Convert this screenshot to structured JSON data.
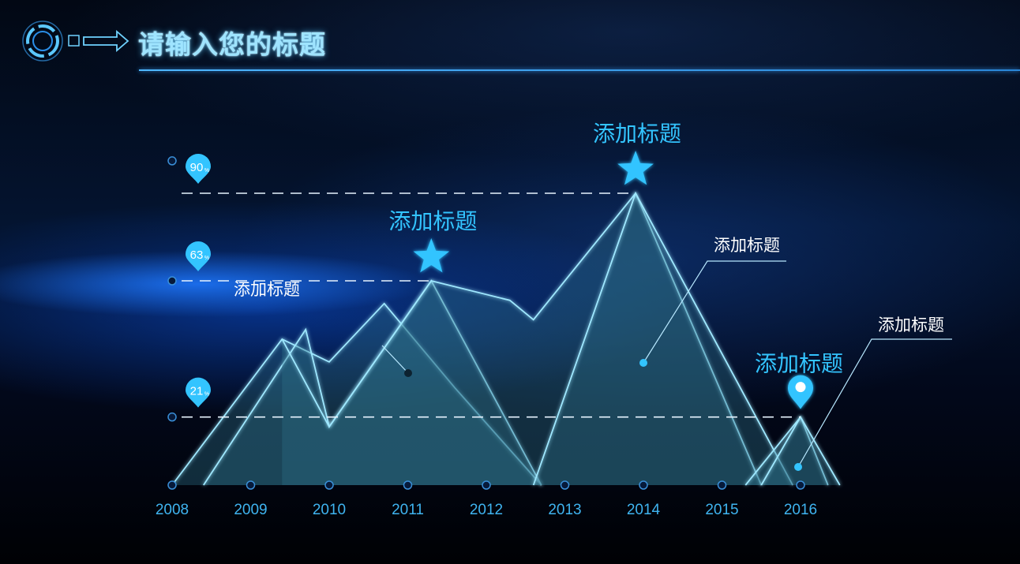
{
  "header": {
    "title": "请输入您的标题"
  },
  "colors": {
    "accent": "#33c4ff",
    "line": "#9fe8ff",
    "fill": "#2e6f86",
    "axis": "#3a8fd8",
    "label": "#3fb4f0",
    "annotation": "#ffffff"
  },
  "chart_data": {
    "type": "area",
    "x_ticks": [
      "2008",
      "2009",
      "2010",
      "2011",
      "2012",
      "2013",
      "2014",
      "2015",
      "2016"
    ],
    "ylim": [
      0,
      100
    ],
    "reference_lines": [
      {
        "label": "90",
        "unit": "%",
        "value": 90
      },
      {
        "label": "63",
        "unit": "%",
        "value": 63
      },
      {
        "label": "21",
        "unit": "%",
        "value": 21
      }
    ],
    "series": [
      {
        "x": [
          2008.0,
          2009.4,
          2010.0,
          2010.7,
          2011.6,
          2012.7
        ],
        "y": [
          0,
          45,
          38,
          56,
          30,
          0
        ]
      },
      {
        "x": [
          2008.4,
          2009.7,
          2010.0,
          2011.3,
          2012.7
        ],
        "y": [
          0,
          48,
          18,
          63,
          0
        ]
      },
      {
        "x": [
          2009.4,
          2010.0,
          2011.3,
          2012.3,
          2012.6,
          2013.9,
          2015.5
        ],
        "y": [
          45,
          18,
          63,
          57,
          51,
          90,
          0
        ]
      },
      {
        "x": [
          2012.6,
          2013.9,
          2015.9
        ],
        "y": [
          0,
          90,
          0
        ]
      },
      {
        "x": [
          2015.3,
          2016.0,
          2016.35
        ],
        "y": [
          0,
          21,
          0
        ]
      },
      {
        "x": [
          2015.5,
          2016.0,
          2016.5
        ],
        "y": [
          0,
          21,
          0
        ]
      }
    ],
    "annotations": [
      {
        "text": "添加标题",
        "marker": "star",
        "x": 2011.3,
        "y": 63
      },
      {
        "text": "添加标题",
        "marker": "star",
        "x": 2013.9,
        "y": 90
      },
      {
        "text": "添加标题",
        "marker": "pin",
        "x": 2016.0,
        "y": 21
      }
    ],
    "callouts": [
      {
        "text": "添加标题",
        "x": 2011.0,
        "y": 33
      },
      {
        "text": "添加标题",
        "x": 2014.0,
        "y": 36
      },
      {
        "text": "添加标题",
        "x": 2016.0,
        "y": 5
      }
    ]
  }
}
